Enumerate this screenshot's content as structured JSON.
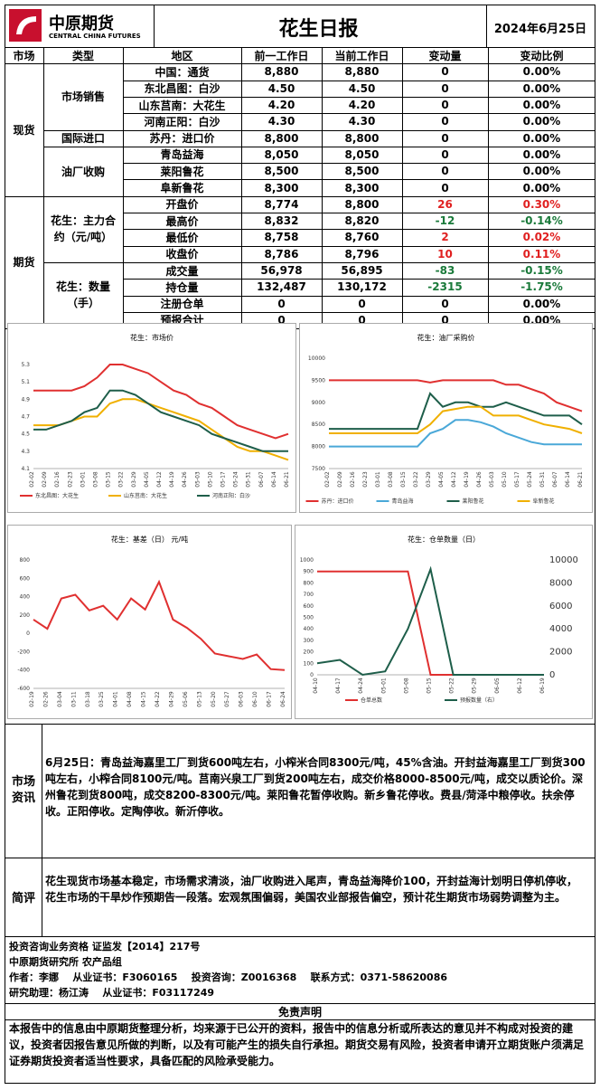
{
  "header": {
    "logo_cn": "中原期货",
    "logo_en": "CENTRAL CHINA FUTURES",
    "title": "花生日报",
    "date": "2024年6月25日"
  },
  "columns": [
    "市场",
    "类型",
    "地区",
    "前一工作日",
    "当前工作日",
    "变动量",
    "变动比例"
  ],
  "sections": {
    "spot": "现货",
    "futures": "期货",
    "market_sales": "市场销售",
    "import": "国际进口",
    "oil_mill": "油厂收购",
    "futures_main": "花生：主力合约（元/吨）",
    "futures_qty": "花生：数量（手）"
  },
  "rows": [
    {
      "region": "中国：通货",
      "prev": "8,880",
      "curr": "8,880",
      "chg": "0",
      "pct": "0.00%",
      "dir": ""
    },
    {
      "region": "东北昌图：白沙",
      "prev": "4.50",
      "curr": "4.50",
      "chg": "0",
      "pct": "0.00%",
      "dir": ""
    },
    {
      "region": "山东莒南：大花生",
      "prev": "4.20",
      "curr": "4.20",
      "chg": "0",
      "pct": "0.00%",
      "dir": ""
    },
    {
      "region": "河南正阳：白沙",
      "prev": "4.30",
      "curr": "4.30",
      "chg": "0",
      "pct": "0.00%",
      "dir": ""
    },
    {
      "region": "苏丹：进口价",
      "prev": "8,800",
      "curr": "8,800",
      "chg": "0",
      "pct": "0.00%",
      "dir": ""
    },
    {
      "region": "青岛益海",
      "prev": "8,050",
      "curr": "8,050",
      "chg": "0",
      "pct": "0.00%",
      "dir": ""
    },
    {
      "region": "莱阳鲁花",
      "prev": "8,500",
      "curr": "8,500",
      "chg": "0",
      "pct": "0.00%",
      "dir": ""
    },
    {
      "region": "阜新鲁花",
      "prev": "8,300",
      "curr": "8,300",
      "chg": "0",
      "pct": "0.00%",
      "dir": ""
    },
    {
      "region": "开盘价",
      "prev": "8,774",
      "curr": "8,800",
      "chg": "26",
      "pct": "0.30%",
      "dir": "red"
    },
    {
      "region": "最高价",
      "prev": "8,832",
      "curr": "8,820",
      "chg": "-12",
      "pct": "-0.14%",
      "dir": "green"
    },
    {
      "region": "最低价",
      "prev": "8,758",
      "curr": "8,760",
      "chg": "2",
      "pct": "0.02%",
      "dir": "red"
    },
    {
      "region": "收盘价",
      "prev": "8,786",
      "curr": "8,796",
      "chg": "10",
      "pct": "0.11%",
      "dir": "red"
    },
    {
      "region": "成交量",
      "prev": "56,978",
      "curr": "56,895",
      "chg": "-83",
      "pct": "-0.15%",
      "dir": "green"
    },
    {
      "region": "持仓量",
      "prev": "132,487",
      "curr": "130,172",
      "chg": "-2315",
      "pct": "-1.75%",
      "dir": "green"
    },
    {
      "region": "注册仓单",
      "prev": "0",
      "curr": "0",
      "chg": "0",
      "pct": "0.00%",
      "dir": ""
    },
    {
      "region": "预报合计",
      "prev": "0",
      "curr": "0",
      "chg": "0",
      "pct": "0.00%",
      "dir": ""
    }
  ],
  "chart_data": [
    {
      "type": "line",
      "title": "花生：市场价",
      "ylim": [
        4.1,
        5.3
      ],
      "yticks": [
        "5.3",
        "5.1",
        "4.9",
        "4.7",
        "4.5",
        "4.3",
        "4.1"
      ],
      "x": [
        "02-02",
        "02-09",
        "02-16",
        "02-23",
        "03-01",
        "03-08",
        "03-15",
        "03-22",
        "03-29",
        "04-05",
        "04-12",
        "04-19",
        "04-26",
        "05-03",
        "05-10",
        "05-17",
        "05-24",
        "05-31",
        "06-07",
        "06-14",
        "06-21"
      ],
      "series": [
        {
          "name": "东北昌图：大花生",
          "color": "#e03030",
          "values": [
            5.0,
            5.0,
            5.0,
            5.0,
            5.05,
            5.15,
            5.3,
            5.3,
            5.25,
            5.2,
            5.1,
            5.0,
            4.95,
            4.85,
            4.8,
            4.7,
            4.6,
            4.55,
            4.5,
            4.45,
            4.5
          ]
        },
        {
          "name": "山东莒南：大花生",
          "color": "#f0b000",
          "values": [
            4.6,
            4.6,
            4.6,
            4.65,
            4.7,
            4.7,
            4.85,
            4.9,
            4.9,
            4.85,
            4.8,
            4.75,
            4.7,
            4.65,
            4.55,
            4.45,
            4.35,
            4.3,
            4.3,
            4.25,
            4.2
          ]
        },
        {
          "name": "河南正阳：白沙",
          "color": "#1e5e4a",
          "values": [
            4.55,
            4.55,
            4.6,
            4.65,
            4.75,
            4.8,
            5.0,
            5.0,
            4.95,
            4.85,
            4.75,
            4.7,
            4.65,
            4.6,
            4.5,
            4.45,
            4.4,
            4.35,
            4.3,
            4.3,
            4.3
          ]
        }
      ]
    },
    {
      "type": "line",
      "title": "花生：油厂采购价",
      "ylim": [
        7500,
        10000
      ],
      "yticks": [
        "10000",
        "9500",
        "9000",
        "8500",
        "8000",
        "7500"
      ],
      "x": [
        "02-02",
        "02-09",
        "02-16",
        "02-23",
        "03-01",
        "03-08",
        "03-15",
        "03-22",
        "03-29",
        "04-05",
        "04-12",
        "04-19",
        "04-26",
        "05-03",
        "05-10",
        "05-17",
        "05-24",
        "05-31",
        "06-07",
        "06-14",
        "06-21"
      ],
      "series": [
        {
          "name": "苏丹：进口价",
          "color": "#e03030",
          "values": [
            9500,
            9500,
            9500,
            9500,
            9500,
            9500,
            9500,
            9500,
            9450,
            9500,
            9500,
            9500,
            9500,
            9500,
            9400,
            9400,
            9300,
            9200,
            9000,
            8900,
            8800
          ]
        },
        {
          "name": "青岛益海",
          "color": "#4aa8d8",
          "values": [
            8000,
            8000,
            8000,
            8000,
            8000,
            8000,
            8000,
            8000,
            8300,
            8400,
            8600,
            8600,
            8550,
            8450,
            8300,
            8200,
            8100,
            8050,
            8050,
            8050,
            8050
          ]
        },
        {
          "name": "莱阳鲁花",
          "color": "#1e5e4a",
          "values": [
            8400,
            8400,
            8400,
            8400,
            8400,
            8400,
            8400,
            8400,
            9200,
            8900,
            9000,
            9000,
            8900,
            8900,
            9000,
            8900,
            8800,
            8700,
            8700,
            8700,
            8500
          ]
        },
        {
          "name": "阜新鲁花",
          "color": "#f0b000",
          "values": [
            8300,
            8300,
            8300,
            8300,
            8300,
            8300,
            8300,
            8300,
            8500,
            8800,
            8850,
            8900,
            8900,
            8700,
            8700,
            8700,
            8600,
            8500,
            8450,
            8400,
            8300
          ]
        }
      ]
    },
    {
      "type": "line",
      "title": "花生：基差（日） 元/吨",
      "ylim": [
        -600,
        800
      ],
      "yticks": [
        "800",
        "600",
        "400",
        "200",
        "0",
        "-200",
        "-400",
        "-600"
      ],
      "x": [
        "02-19",
        "02-26",
        "03-04",
        "03-11",
        "03-18",
        "03-25",
        "04-01",
        "04-08",
        "04-15",
        "04-22",
        "04-29",
        "05-06",
        "05-13",
        "05-20",
        "05-27",
        "06-03",
        "06-10",
        "06-17",
        "06-24"
      ],
      "series": [
        {
          "name": "基差",
          "color": "#e03030",
          "values": [
            150,
            50,
            380,
            420,
            250,
            300,
            150,
            380,
            260,
            560,
            150,
            60,
            -60,
            -220,
            -250,
            -280,
            -230,
            -390,
            -400
          ]
        }
      ]
    },
    {
      "type": "line",
      "title": "花生：仓单数量（日）",
      "ylim": [
        0,
        1000
      ],
      "y2lim": [
        0,
        10000
      ],
      "yticks": [
        "1000",
        "900",
        "800",
        "700",
        "600",
        "500",
        "400",
        "300",
        "200",
        "100",
        "0"
      ],
      "y2ticks": [
        "10000",
        "8000",
        "6000",
        "4000",
        "2000",
        "0"
      ],
      "x": [
        "04-10",
        "04-17",
        "04-24",
        "05-01",
        "05-08",
        "05-15",
        "05-22",
        "05-29",
        "06-05",
        "06-12",
        "06-19"
      ],
      "series": [
        {
          "name": "仓单总数",
          "color": "#e03030",
          "values": [
            900,
            900,
            900,
            900,
            900,
            0,
            0,
            0,
            0,
            0,
            0
          ]
        },
        {
          "name": "预报数量（右）",
          "color": "#1e5e4a",
          "values": [
            1000,
            1300,
            0,
            300,
            4000,
            9200,
            0,
            0,
            0,
            0,
            0
          ]
        }
      ]
    }
  ],
  "info": {
    "label_market": "市场资讯",
    "label_review": "简评",
    "market": "6月25日：青岛益海嘉里工厂到货600吨左右，小榨米合同8300元/吨，45%含油。开封益海嘉里工厂到货300吨左右，小榨合同8100元/吨。莒南兴泉工厂到货200吨左右，成交价格8000-8500元/吨，成交以质论价。深州鲁花到货800吨，成交8200-8300元/吨。莱阳鲁花暂停收购。新乡鲁花停收。费县/菏泽中粮停收。扶余停收。正阳停收。定陶停收。新沂停收。",
    "review": "花生现货市场基本稳定，市场需求清淡，油厂收购进入尾声，青岛益海降价100，开封益海计划明日停机停收，花生市场的干旱炒作预期告一段落。宏观氛围偏弱，美国农业部报告偏空，预计花生期货市场弱势调整为主。"
  },
  "footer": {
    "qual": "投资咨询业务资格  证监发【2014】217号",
    "dept": "中原期货研究所  农产品组",
    "author": "作者：李娜    从业证书：F3060165    投资咨询：Z0016368    联系方式：0371-58620086",
    "assistant": "研究助理：杨江涛    从业证书：F03117249",
    "disclaimer_title": "免责声明",
    "disclaimer": "本报告中的信息由中原期货整理分析，均来源于已公开的资料，报告中的信息分析或所表达的意见并不构成对投资的建议，投资者因报告意见所做的判断，以及有可能产生的损失自行承担。期货交易有风险，投资者申请开立期货账户须满足证券期货投资者适当性要求，具备匹配的风险承受能力。"
  }
}
